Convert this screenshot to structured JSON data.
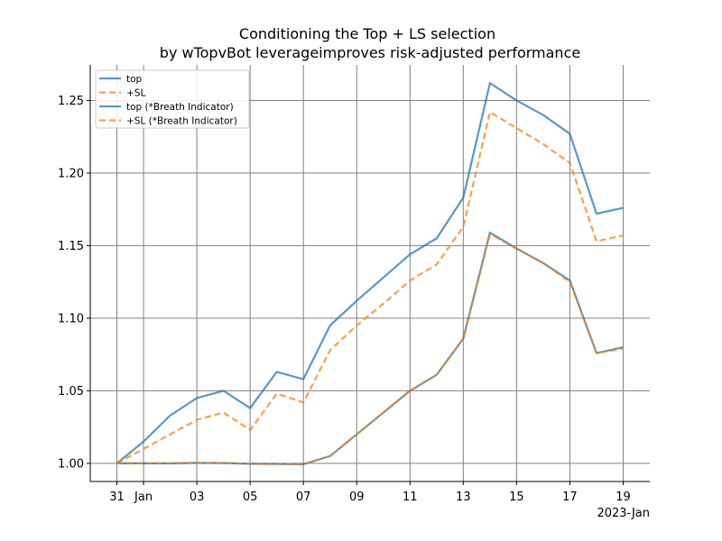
{
  "chart_data": {
    "type": "line",
    "title_line1": "Conditioning the Top + LS selection",
    "title_line2": "by wTopvBot leverageimproves risk-adjusted performance",
    "xlabel": "",
    "ylabel": "",
    "x_offset_label": "2023-Jan",
    "x": [
      "2022-12-31",
      "2023-01-01",
      "2023-01-02",
      "2023-01-03",
      "2023-01-04",
      "2023-01-05",
      "2023-01-06",
      "2023-01-07",
      "2023-01-08",
      "2023-01-09",
      "2023-01-10",
      "2023-01-11",
      "2023-01-12",
      "2023-01-13",
      "2023-01-14",
      "2023-01-15",
      "2023-01-16",
      "2023-01-17",
      "2023-01-18",
      "2023-01-19"
    ],
    "x_tick_dates": [
      "2022-12-31",
      "2023-01-01",
      "2023-01-03",
      "2023-01-05",
      "2023-01-07",
      "2023-01-09",
      "2023-01-11",
      "2023-01-13",
      "2023-01-15",
      "2023-01-17",
      "2023-01-19"
    ],
    "x_tick_labels": [
      "31",
      "Jan",
      "03",
      "05",
      "07",
      "09",
      "11",
      "13",
      "15",
      "17",
      "19"
    ],
    "xlim": [
      "2022-12-30",
      "2023-01-20"
    ],
    "ylim": [
      0.9875,
      1.2745
    ],
    "y_ticks": [
      1.0,
      1.05,
      1.1,
      1.15,
      1.2,
      1.25
    ],
    "y_tick_labels": [
      "1.00",
      "1.05",
      "1.10",
      "1.15",
      "1.20",
      "1.25"
    ],
    "grid": true,
    "legend_position": "top-left",
    "series": [
      {
        "name": "top",
        "color": "#1f77b4",
        "dash": "solid",
        "values": [
          1.0,
          1.015,
          1.033,
          1.045,
          1.05,
          1.038,
          1.063,
          1.058,
          1.095,
          1.112,
          1.128,
          1.144,
          1.155,
          1.183,
          1.262,
          1.25,
          1.24,
          1.227,
          1.172,
          1.176
        ]
      },
      {
        "name": "+SL",
        "color": "#ff7f0e",
        "dash": "dashed",
        "values": [
          1.0,
          1.01,
          1.02,
          1.03,
          1.035,
          1.023,
          1.048,
          1.042,
          1.078,
          1.095,
          1.11,
          1.126,
          1.137,
          1.163,
          1.242,
          1.231,
          1.22,
          1.207,
          1.153,
          1.157
        ]
      },
      {
        "name": "top (*Breath Indicator)",
        "color": "#1f77b4",
        "dash": "solid",
        "values": [
          1.0,
          1.0,
          1.0,
          1.0003,
          1.0002,
          0.9997,
          0.9996,
          0.9994,
          1.005,
          1.02,
          1.035,
          1.05,
          1.061,
          1.086,
          1.159,
          1.148,
          1.138,
          1.126,
          1.076,
          1.08
        ]
      },
      {
        "name": "+SL (*Breath Indicator)",
        "color": "#ff7f0e",
        "dash": "dashed",
        "values": [
          1.0,
          1.0,
          1.0,
          1.0003,
          1.0002,
          0.9997,
          0.9996,
          0.9994,
          1.005,
          1.02,
          1.035,
          1.05,
          1.061,
          1.086,
          1.158,
          1.148,
          1.138,
          1.125,
          1.076,
          1.079
        ]
      }
    ]
  }
}
